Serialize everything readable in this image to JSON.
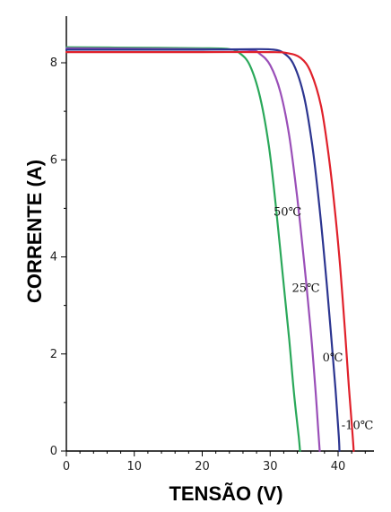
{
  "chart_data": {
    "type": "line",
    "title": "",
    "xlabel": "TENSÃO (V)",
    "ylabel": "CORRENTE (A)",
    "xlim": [
      0,
      45
    ],
    "ylim": [
      0,
      8.8
    ],
    "xticks": [
      0,
      10,
      20,
      30,
      40
    ],
    "yticks": [
      0,
      2,
      4,
      6,
      8
    ],
    "grid": false,
    "series": [
      {
        "name": "50℃",
        "color": "#2aa85a",
        "points": [
          [
            0,
            8.32
          ],
          [
            10,
            8.31
          ],
          [
            20,
            8.3
          ],
          [
            24,
            8.28
          ],
          [
            25.5,
            8.2
          ],
          [
            27,
            7.95
          ],
          [
            28.5,
            7.3
          ],
          [
            29.8,
            6.3
          ],
          [
            30.8,
            5.1
          ],
          [
            31.8,
            3.7
          ],
          [
            32.8,
            2.3
          ],
          [
            33.5,
            1.2
          ],
          [
            34.2,
            0.3
          ],
          [
            34.4,
            0
          ]
        ]
      },
      {
        "name": "25℃",
        "color": "#9a4fb8",
        "points": [
          [
            0,
            8.3
          ],
          [
            10,
            8.29
          ],
          [
            20,
            8.28
          ],
          [
            27,
            8.26
          ],
          [
            28.5,
            8.18
          ],
          [
            30,
            7.95
          ],
          [
            31.5,
            7.4
          ],
          [
            32.8,
            6.5
          ],
          [
            34,
            5.2
          ],
          [
            35,
            3.9
          ],
          [
            35.9,
            2.6
          ],
          [
            36.6,
            1.4
          ],
          [
            37.1,
            0.4
          ],
          [
            37.3,
            0
          ]
        ]
      },
      {
        "name": "0℃",
        "color": "#2c3590",
        "points": [
          [
            0,
            8.27
          ],
          [
            10,
            8.27
          ],
          [
            20,
            8.27
          ],
          [
            28,
            8.28
          ],
          [
            30.5,
            8.27
          ],
          [
            32,
            8.2
          ],
          [
            33.5,
            7.95
          ],
          [
            35,
            7.3
          ],
          [
            36.2,
            6.3
          ],
          [
            37.2,
            5.1
          ],
          [
            38.1,
            3.8
          ],
          [
            38.9,
            2.5
          ],
          [
            39.6,
            1.3
          ],
          [
            40.1,
            0.3
          ],
          [
            40.2,
            0
          ]
        ]
      },
      {
        "name": "-10℃",
        "color": "#e0212b",
        "points": [
          [
            0,
            8.22
          ],
          [
            10,
            8.22
          ],
          [
            20,
            8.22
          ],
          [
            30,
            8.22
          ],
          [
            32.5,
            8.2
          ],
          [
            34.5,
            8.1
          ],
          [
            36,
            7.8
          ],
          [
            37.5,
            7.1
          ],
          [
            38.6,
            6.1
          ],
          [
            39.5,
            5.0
          ],
          [
            40.3,
            3.8
          ],
          [
            41,
            2.5
          ],
          [
            41.6,
            1.3
          ],
          [
            42.1,
            0.4
          ],
          [
            42.3,
            0
          ]
        ]
      }
    ],
    "labels": [
      {
        "text": "50℃",
        "x": 30.5,
        "y": 4.85
      },
      {
        "text": "25℃",
        "x": 33.2,
        "y": 3.28
      },
      {
        "text": "0℃",
        "x": 37.7,
        "y": 1.85
      },
      {
        "text": "-10℃",
        "x": 40.5,
        "y": 0.45
      }
    ]
  }
}
